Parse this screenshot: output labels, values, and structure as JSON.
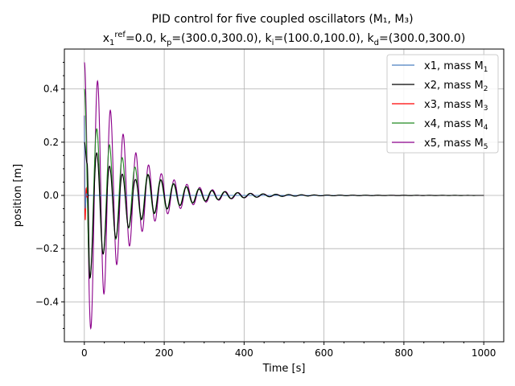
{
  "chart_data": {
    "type": "line",
    "title": {
      "line1": "PID control for five coupled oscillators (M₁, M₃)",
      "line2_parts": [
        {
          "t": "x"
        },
        {
          "t": "1",
          "sub": true
        },
        {
          "t": "ref",
          "sup": true
        },
        {
          "t": "=0.0, k"
        },
        {
          "t": "p",
          "sub": true
        },
        {
          "t": "=(300.0,300.0), k"
        },
        {
          "t": "i",
          "sub": true
        },
        {
          "t": "=(100.0,100.0), k"
        },
        {
          "t": "d",
          "sub": true
        },
        {
          "t": "=(300.0,300.0)"
        }
      ]
    },
    "xlabel": "Time [s]",
    "ylabel": "position [m]",
    "xlim": [
      -50,
      1050
    ],
    "ylim": [
      -0.55,
      0.55
    ],
    "xticks": [
      0,
      200,
      400,
      600,
      800,
      1000
    ],
    "xtick_labels": [
      "0",
      "200",
      "400",
      "600",
      "800",
      "1000"
    ],
    "yticks": [
      -0.4,
      -0.2,
      0.0,
      0.2,
      0.4
    ],
    "ytick_labels": [
      "−0.4",
      "−0.2",
      "0.0",
      "0.2",
      "0.4"
    ],
    "grid": true,
    "legend_position": "top-right",
    "series": [
      {
        "name": "x1, mass M1",
        "legend": "x1, mass M",
        "legend_sub": "1",
        "color": "#4a7fc0",
        "model": "controlled",
        "amp": 0.3,
        "tau": 1.5,
        "period": 6
      },
      {
        "name": "x2, mass M2",
        "legend": "x2, mass M",
        "legend_sub": "2",
        "color": "#000000",
        "model": "oscillating",
        "amp": 0.2,
        "peaks": [
          [
            0,
            0.2
          ],
          [
            7,
            0.12
          ],
          [
            14,
            -0.31
          ],
          [
            31,
            0.16
          ],
          [
            47,
            -0.22
          ],
          [
            63,
            0.11
          ],
          [
            79,
            -0.16
          ],
          [
            95,
            0.08
          ],
          [
            111,
            -0.12
          ],
          [
            128,
            0.06
          ],
          [
            144,
            -0.09
          ]
        ],
        "tau": 110,
        "period": 32
      },
      {
        "name": "x3, mass M3",
        "legend": "x3, mass M",
        "legend_sub": "3",
        "color": "#ff0000",
        "model": "controlled",
        "amp": 0.3,
        "tau": 2.0,
        "period": 5
      },
      {
        "name": "x4, mass M4",
        "legend": "x4, mass M",
        "legend_sub": "4",
        "color": "#228b22",
        "model": "oscillating",
        "amp": 0.4,
        "peaks": [
          [
            0,
            0.4
          ],
          [
            14,
            -0.31
          ],
          [
            31,
            0.25
          ],
          [
            47,
            -0.22
          ],
          [
            63,
            0.19
          ]
        ],
        "tau": 110,
        "period": 32
      },
      {
        "name": "x5, mass M5",
        "legend": "x5, mass M",
        "legend_sub": "5",
        "color": "#8b008b",
        "model": "oscillating",
        "amp": 0.5,
        "peaks": [
          [
            0,
            0.5
          ],
          [
            16,
            -0.5
          ],
          [
            33,
            0.43
          ],
          [
            49,
            -0.37
          ],
          [
            65,
            0.32
          ],
          [
            81,
            -0.26
          ],
          [
            97,
            0.23
          ],
          [
            113,
            -0.19
          ],
          [
            129,
            0.16
          ]
        ],
        "tau": 95,
        "period": 32
      }
    ]
  }
}
